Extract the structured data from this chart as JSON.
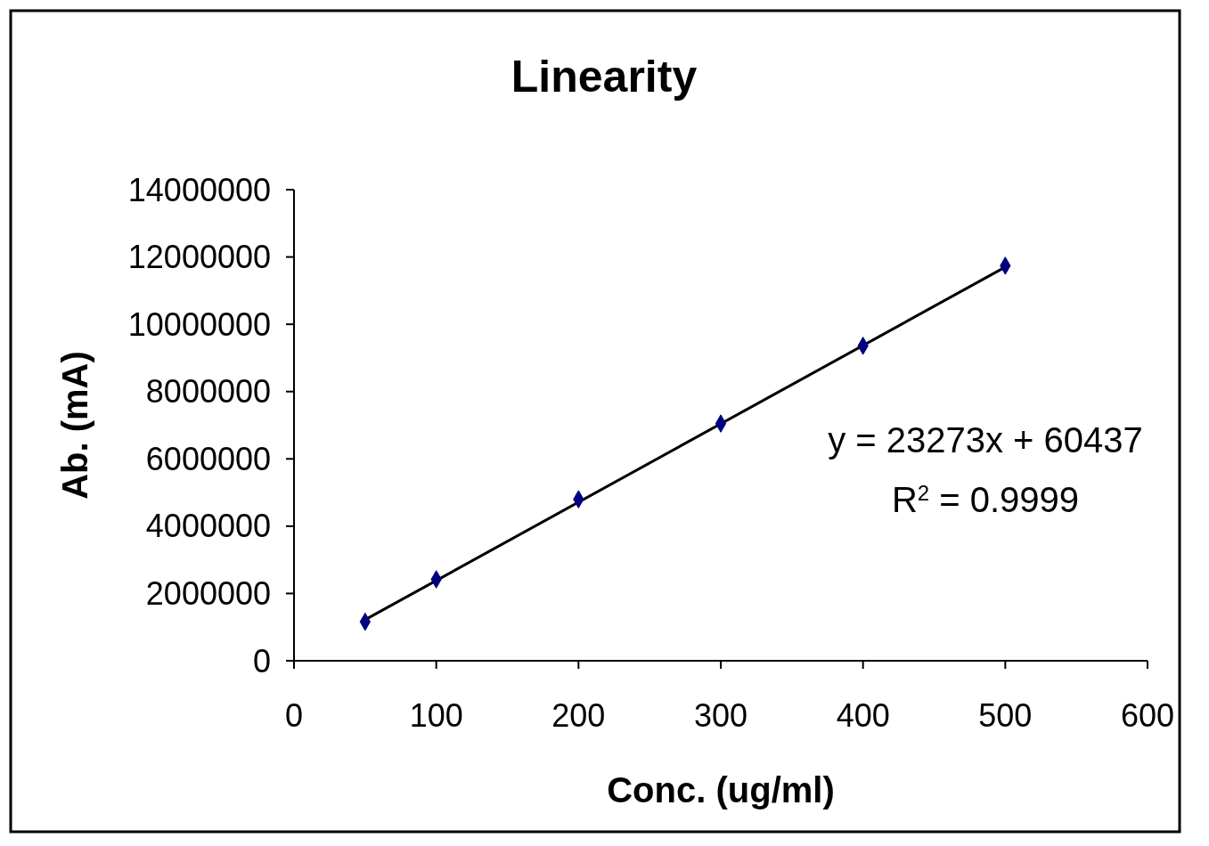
{
  "chart_data": {
    "type": "scatter",
    "title": "Linearity",
    "xlabel": "Conc. (ug/ml)",
    "ylabel": "Ab. (mA)",
    "x": [
      50,
      100,
      200,
      300,
      400,
      500
    ],
    "series": [
      {
        "color": "#000080",
        "values": [
          1160000,
          2420000,
          4800000,
          7050000,
          9360000,
          11740000
        ]
      },
      {
        "type": "line",
        "marker": "none",
        "color": "#000000",
        "x": [
          50,
          500
        ],
        "values": [
          1220000,
          11700000
        ]
      }
    ],
    "xlim": [
      0,
      600
    ],
    "xticks": [
      0,
      100,
      200,
      300,
      400,
      500,
      600
    ],
    "ylim": [
      0,
      14000000
    ],
    "yticks": [
      0,
      2000000,
      4000000,
      6000000,
      8000000,
      10000000,
      12000000,
      14000000
    ],
    "annotations": [
      "y = 23273x + 60437",
      "R$^{2}$ = 0.9999"
    ],
    "grid": false,
    "marker": "diamond",
    "line_style": "solid"
  }
}
